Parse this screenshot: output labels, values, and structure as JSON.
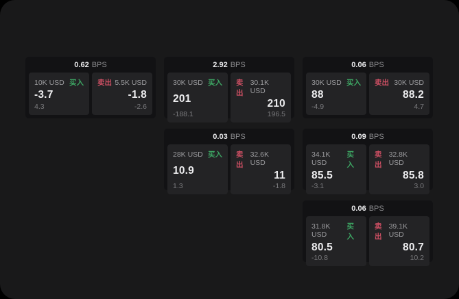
{
  "labels": {
    "buy": "买入",
    "sell": "卖出",
    "bps_unit": "BPS"
  },
  "colors": {
    "buy_accent": "#3da563",
    "sell_accent": "#cc4f63",
    "surface": "#19191a",
    "card_background": "#121214",
    "panel_background": "#232325"
  },
  "cards": [
    {
      "grid": {
        "row": 1,
        "col": 1
      },
      "bps": "0.62",
      "buy": {
        "amount": "10K USD",
        "price": "-3.7",
        "delta": "4.3"
      },
      "sell": {
        "amount": "5.5K USD",
        "price": "-1.8",
        "delta": "-2.6"
      }
    },
    {
      "grid": {
        "row": 1,
        "col": 2
      },
      "bps": "2.92",
      "buy": {
        "amount": "30K USD",
        "price": "201",
        "delta": "-188.1"
      },
      "sell": {
        "amount": "30.1K USD",
        "price": "210",
        "delta": "196.5"
      }
    },
    {
      "grid": {
        "row": 1,
        "col": 3
      },
      "bps": "0.06",
      "buy": {
        "amount": "30K USD",
        "price": "88",
        "delta": "-4.9"
      },
      "sell": {
        "amount": "30K USD",
        "price": "88.2",
        "delta": "4.7"
      }
    },
    {
      "grid": {
        "row": 2,
        "col": 2
      },
      "bps": "0.03",
      "buy": {
        "amount": "28K USD",
        "price": "10.9",
        "delta": "1.3"
      },
      "sell": {
        "amount": "32.6K USD",
        "price": "11",
        "delta": "-1.8"
      }
    },
    {
      "grid": {
        "row": 2,
        "col": 3
      },
      "bps": "0.09",
      "buy": {
        "amount": "34.1K USD",
        "price": "85.5",
        "delta": "-3.1"
      },
      "sell": {
        "amount": "32.8K USD",
        "price": "85.8",
        "delta": "3.0"
      }
    },
    {
      "grid": {
        "row": 3,
        "col": 3
      },
      "bps": "0.06",
      "buy": {
        "amount": "31.8K USD",
        "price": "80.5",
        "delta": "-10.8"
      },
      "sell": {
        "amount": "39.1K USD",
        "price": "80.7",
        "delta": "10.2"
      }
    }
  ]
}
